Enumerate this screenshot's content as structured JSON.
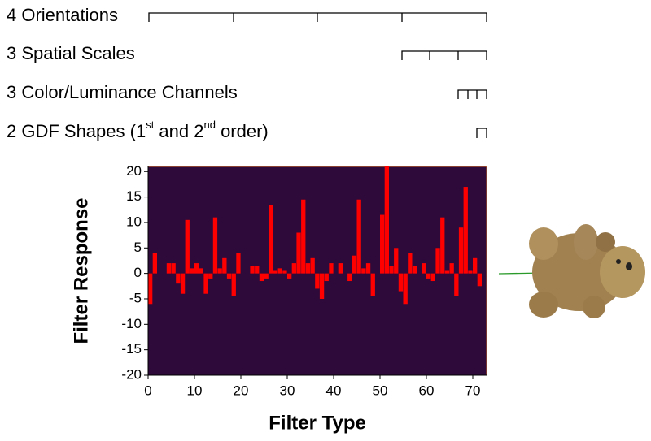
{
  "chart_data": {
    "type": "bar",
    "annotations": [
      "4 Orientations",
      "3 Spatial Scales",
      "3 Color/Luminance Channels"
    ],
    "gdf_note": {
      "a": "2 GDF Shapes (1",
      "sup1": "st",
      "b": " and 2",
      "sup2": "nd",
      "c": " order)"
    },
    "x_label": "Filter Type",
    "y_label": "Filter Response",
    "x": [
      0,
      1,
      2,
      3,
      4,
      5,
      6,
      7,
      8,
      9,
      10,
      11,
      12,
      13,
      14,
      15,
      16,
      17,
      18,
      19,
      20,
      21,
      22,
      23,
      24,
      25,
      26,
      27,
      28,
      29,
      30,
      31,
      32,
      33,
      34,
      35,
      36,
      37,
      38,
      39,
      40,
      41,
      42,
      43,
      44,
      45,
      46,
      47,
      48,
      49,
      50,
      51,
      52,
      53,
      54,
      55,
      56,
      57,
      58,
      59,
      60,
      61,
      62,
      63,
      64,
      65,
      66,
      67,
      68,
      69,
      70,
      71
    ],
    "values": [
      -6,
      4,
      0,
      0,
      2,
      2,
      -2,
      -4,
      10.5,
      1,
      2,
      1,
      -4,
      -1,
      11,
      1,
      3,
      -1,
      -4.5,
      4,
      0,
      0,
      1.5,
      1.5,
      -1.5,
      -1,
      13.5,
      0.5,
      1,
      0.5,
      -1,
      2,
      8,
      14.5,
      2,
      3,
      -3,
      -5,
      -1.5,
      2,
      0,
      2,
      0,
      -1.5,
      3.5,
      14.5,
      1,
      2,
      -4.5,
      0,
      11.5,
      21,
      1.5,
      5,
      -3.5,
      -6,
      4,
      1.5,
      0,
      2,
      -1,
      -1.5,
      5,
      11,
      0.5,
      2,
      -4.5,
      9,
      17,
      0.5,
      3,
      -2.5
    ],
    "color": "#ff0000",
    "background": "#2e0a3a",
    "xlim": [
      0,
      73
    ],
    "ylim": [
      -20,
      21
    ],
    "xticks": [
      0,
      10,
      20,
      30,
      40,
      50,
      60,
      70
    ],
    "yticks": [
      -20,
      -15,
      -10,
      -5,
      0,
      5,
      10,
      15,
      20
    ]
  }
}
